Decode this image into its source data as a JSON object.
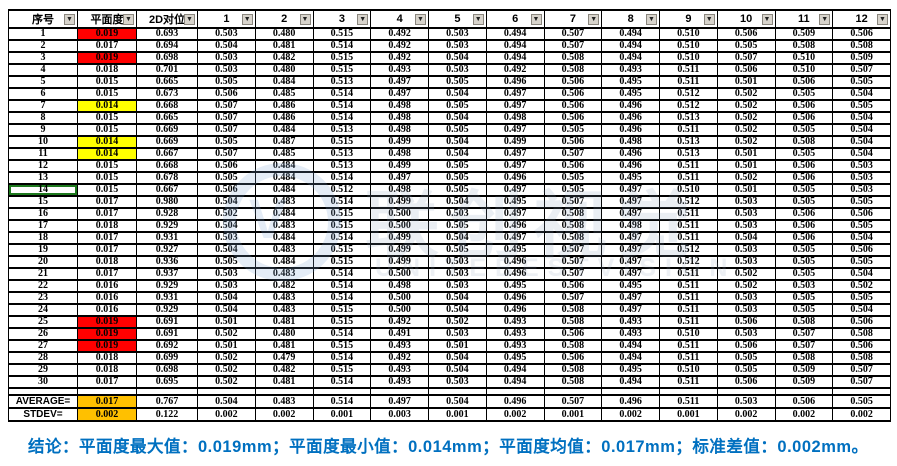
{
  "table": {
    "headers": [
      "序号",
      "平面度",
      "2D对位",
      "1",
      "2",
      "3",
      "4",
      "5",
      "6",
      "7",
      "8",
      "9",
      "10",
      "11",
      "12"
    ],
    "rows": [
      [
        "1",
        "0.019",
        "0.693",
        "0.503",
        "0.480",
        "0.515",
        "0.492",
        "0.503",
        "0.494",
        "0.507",
        "0.494",
        "0.510",
        "0.506",
        "0.509",
        "0.506"
      ],
      [
        "2",
        "0.017",
        "0.694",
        "0.504",
        "0.481",
        "0.514",
        "0.492",
        "0.503",
        "0.494",
        "0.507",
        "0.494",
        "0.510",
        "0.505",
        "0.508",
        "0.508"
      ],
      [
        "3",
        "0.019",
        "0.698",
        "0.503",
        "0.482",
        "0.515",
        "0.492",
        "0.504",
        "0.494",
        "0.508",
        "0.494",
        "0.510",
        "0.507",
        "0.510",
        "0.509"
      ],
      [
        "4",
        "0.018",
        "0.701",
        "0.503",
        "0.480",
        "0.515",
        "0.493",
        "0.503",
        "0.492",
        "0.508",
        "0.493",
        "0.511",
        "0.506",
        "0.510",
        "0.507"
      ],
      [
        "5",
        "0.015",
        "0.665",
        "0.505",
        "0.484",
        "0.513",
        "0.497",
        "0.505",
        "0.496",
        "0.506",
        "0.495",
        "0.511",
        "0.501",
        "0.506",
        "0.505"
      ],
      [
        "6",
        "0.015",
        "0.673",
        "0.506",
        "0.485",
        "0.514",
        "0.497",
        "0.504",
        "0.497",
        "0.506",
        "0.495",
        "0.512",
        "0.502",
        "0.505",
        "0.504"
      ],
      [
        "7",
        "0.014",
        "0.668",
        "0.507",
        "0.486",
        "0.514",
        "0.498",
        "0.505",
        "0.497",
        "0.506",
        "0.496",
        "0.512",
        "0.502",
        "0.506",
        "0.505"
      ],
      [
        "8",
        "0.015",
        "0.665",
        "0.507",
        "0.486",
        "0.514",
        "0.498",
        "0.504",
        "0.498",
        "0.506",
        "0.496",
        "0.513",
        "0.502",
        "0.506",
        "0.504"
      ],
      [
        "9",
        "0.015",
        "0.669",
        "0.507",
        "0.484",
        "0.513",
        "0.498",
        "0.505",
        "0.497",
        "0.505",
        "0.496",
        "0.511",
        "0.502",
        "0.505",
        "0.504"
      ],
      [
        "10",
        "0.014",
        "0.669",
        "0.505",
        "0.487",
        "0.515",
        "0.499",
        "0.504",
        "0.499",
        "0.506",
        "0.498",
        "0.513",
        "0.502",
        "0.508",
        "0.504"
      ],
      [
        "11",
        "0.014",
        "0.667",
        "0.507",
        "0.485",
        "0.513",
        "0.498",
        "0.504",
        "0.497",
        "0.507",
        "0.496",
        "0.513",
        "0.501",
        "0.505",
        "0.504"
      ],
      [
        "12",
        "0.015",
        "0.668",
        "0.506",
        "0.484",
        "0.513",
        "0.499",
        "0.505",
        "0.497",
        "0.506",
        "0.496",
        "0.511",
        "0.501",
        "0.506",
        "0.503"
      ],
      [
        "13",
        "0.015",
        "0.678",
        "0.505",
        "0.484",
        "0.514",
        "0.497",
        "0.505",
        "0.496",
        "0.505",
        "0.495",
        "0.511",
        "0.502",
        "0.506",
        "0.503"
      ],
      [
        "14",
        "0.015",
        "0.667",
        "0.506",
        "0.484",
        "0.512",
        "0.498",
        "0.505",
        "0.497",
        "0.505",
        "0.497",
        "0.510",
        "0.501",
        "0.505",
        "0.503"
      ],
      [
        "15",
        "0.017",
        "0.980",
        "0.504",
        "0.483",
        "0.514",
        "0.499",
        "0.504",
        "0.495",
        "0.507",
        "0.497",
        "0.512",
        "0.503",
        "0.505",
        "0.505"
      ],
      [
        "16",
        "0.017",
        "0.928",
        "0.502",
        "0.484",
        "0.515",
        "0.500",
        "0.503",
        "0.497",
        "0.508",
        "0.497",
        "0.511",
        "0.503",
        "0.506",
        "0.506"
      ],
      [
        "17",
        "0.018",
        "0.929",
        "0.504",
        "0.483",
        "0.515",
        "0.500",
        "0.505",
        "0.496",
        "0.508",
        "0.498",
        "0.511",
        "0.503",
        "0.506",
        "0.505"
      ],
      [
        "18",
        "0.017",
        "0.931",
        "0.503",
        "0.484",
        "0.514",
        "0.499",
        "0.504",
        "0.497",
        "0.508",
        "0.497",
        "0.511",
        "0.504",
        "0.506",
        "0.504"
      ],
      [
        "19",
        "0.017",
        "0.927",
        "0.504",
        "0.483",
        "0.515",
        "0.499",
        "0.505",
        "0.495",
        "0.507",
        "0.497",
        "0.512",
        "0.503",
        "0.505",
        "0.506"
      ],
      [
        "20",
        "0.018",
        "0.936",
        "0.505",
        "0.484",
        "0.515",
        "0.499",
        "0.503",
        "0.496",
        "0.507",
        "0.497",
        "0.512",
        "0.503",
        "0.505",
        "0.505"
      ],
      [
        "21",
        "0.017",
        "0.937",
        "0.503",
        "0.483",
        "0.514",
        "0.500",
        "0.503",
        "0.496",
        "0.507",
        "0.497",
        "0.511",
        "0.502",
        "0.505",
        "0.504"
      ],
      [
        "22",
        "0.016",
        "0.929",
        "0.503",
        "0.482",
        "0.514",
        "0.498",
        "0.503",
        "0.495",
        "0.506",
        "0.495",
        "0.511",
        "0.502",
        "0.503",
        "0.502"
      ],
      [
        "23",
        "0.016",
        "0.931",
        "0.504",
        "0.483",
        "0.514",
        "0.500",
        "0.504",
        "0.496",
        "0.507",
        "0.497",
        "0.511",
        "0.503",
        "0.505",
        "0.505"
      ],
      [
        "24",
        "0.016",
        "0.929",
        "0.504",
        "0.483",
        "0.515",
        "0.500",
        "0.504",
        "0.496",
        "0.508",
        "0.497",
        "0.511",
        "0.503",
        "0.505",
        "0.504"
      ],
      [
        "25",
        "0.019",
        "0.691",
        "0.501",
        "0.481",
        "0.515",
        "0.492",
        "0.502",
        "0.493",
        "0.508",
        "0.493",
        "0.511",
        "0.506",
        "0.508",
        "0.506"
      ],
      [
        "26",
        "0.019",
        "0.691",
        "0.502",
        "0.480",
        "0.514",
        "0.491",
        "0.503",
        "0.493",
        "0.506",
        "0.493",
        "0.510",
        "0.503",
        "0.507",
        "0.508"
      ],
      [
        "27",
        "0.019",
        "0.692",
        "0.501",
        "0.481",
        "0.515",
        "0.493",
        "0.501",
        "0.493",
        "0.508",
        "0.494",
        "0.511",
        "0.506",
        "0.507",
        "0.506"
      ],
      [
        "28",
        "0.018",
        "0.699",
        "0.502",
        "0.479",
        "0.514",
        "0.492",
        "0.504",
        "0.495",
        "0.506",
        "0.494",
        "0.511",
        "0.505",
        "0.508",
        "0.508"
      ],
      [
        "29",
        "0.018",
        "0.698",
        "0.502",
        "0.482",
        "0.515",
        "0.493",
        "0.504",
        "0.494",
        "0.508",
        "0.495",
        "0.510",
        "0.505",
        "0.509",
        "0.507"
      ],
      [
        "30",
        "0.017",
        "0.695",
        "0.502",
        "0.481",
        "0.514",
        "0.493",
        "0.503",
        "0.494",
        "0.508",
        "0.494",
        "0.511",
        "0.506",
        "0.509",
        "0.507"
      ]
    ],
    "summary_rows": [
      [
        "AVERAGE=",
        "0.017",
        "0.767",
        "0.504",
        "0.483",
        "0.514",
        "0.497",
        "0.504",
        "0.496",
        "0.507",
        "0.496",
        "0.511",
        "0.503",
        "0.506",
        "0.505"
      ],
      [
        "STDEV=",
        "0.002",
        "0.122",
        "0.002",
        "0.002",
        "0.001",
        "0.003",
        "0.001",
        "0.002",
        "0.001",
        "0.002",
        "0.001",
        "0.002",
        "0.002",
        "0.002"
      ]
    ],
    "highlights": {
      "red_rows": [
        1,
        3,
        25,
        26,
        27
      ],
      "yellow_rows": [
        7,
        10,
        11
      ],
      "red_color": "#ff0000",
      "yellow_color": "#ffff00",
      "summary_flatness_color": "#ffc000"
    },
    "selection": {
      "row": 14,
      "column": "序号"
    },
    "filter_icon": "▼"
  },
  "conclusion": {
    "text": "结论：平面度最大值：0.019mm；平面度最小值：0.014mm；平面度均值：0.017mm；标准差值：0.002mm。",
    "color": "#0070c0"
  },
  "watermark": {
    "monogram": "V",
    "cn": "联创视觉",
    "en": "UNITEBESTVISION"
  }
}
